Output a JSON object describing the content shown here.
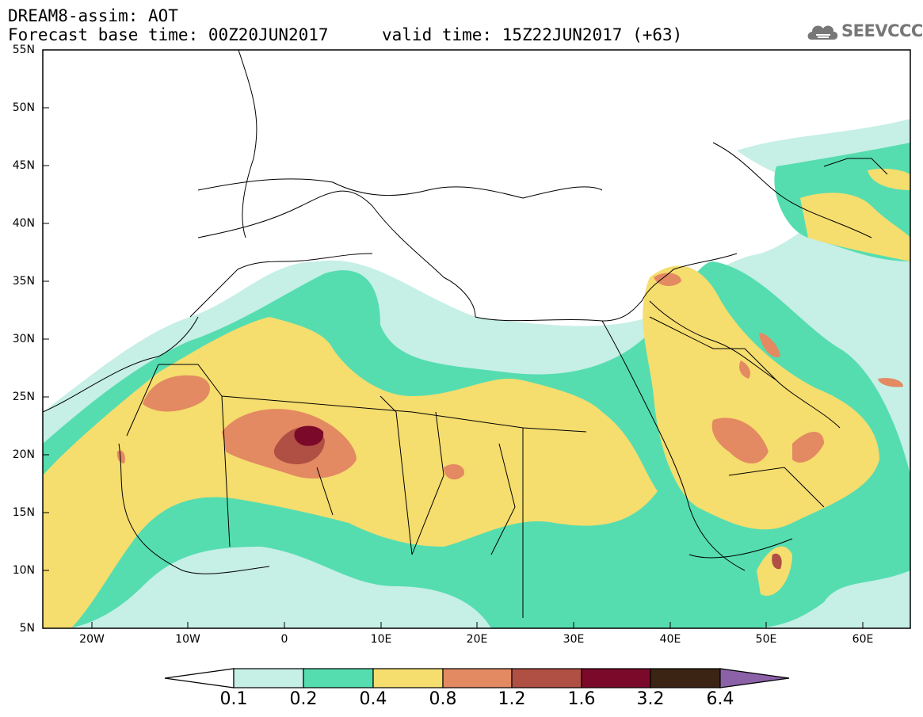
{
  "header": {
    "title": "DREAM8-assim: AOT",
    "base_time": "Forecast base time: 00Z20JUN2017",
    "valid_time": "valid time: 15Z22JUN2017 (+63)",
    "logo_text": "SEEVCCC",
    "logo_icon": "cloud-icon"
  },
  "map": {
    "lat_labels": [
      "55N",
      "50N",
      "45N",
      "40N",
      "35N",
      "30N",
      "25N",
      "20N",
      "15N",
      "10N",
      "5N"
    ],
    "lon_labels": [
      "20W",
      "10W",
      "0",
      "10E",
      "20E",
      "30E",
      "40E",
      "50E",
      "60E"
    ]
  },
  "colorbar": {
    "labels": [
      "0.1",
      "0.2",
      "0.4",
      "0.8",
      "1.2",
      "1.6",
      "3.2",
      "6.4"
    ],
    "colors": [
      "#ffffff",
      "#c6efe5",
      "#55ddb0",
      "#f5dd6e",
      "#e38a62",
      "#b04f43",
      "#7b0a2a",
      "#3b2414",
      "#8b62a7"
    ]
  },
  "palette": {
    "land": "#ffffff",
    "c01": "#c6efe5",
    "c02": "#55ddb0",
    "c04": "#f5dd6e",
    "c08": "#e38a62",
    "c12": "#b04f43",
    "c16": "#7b0a2a"
  }
}
